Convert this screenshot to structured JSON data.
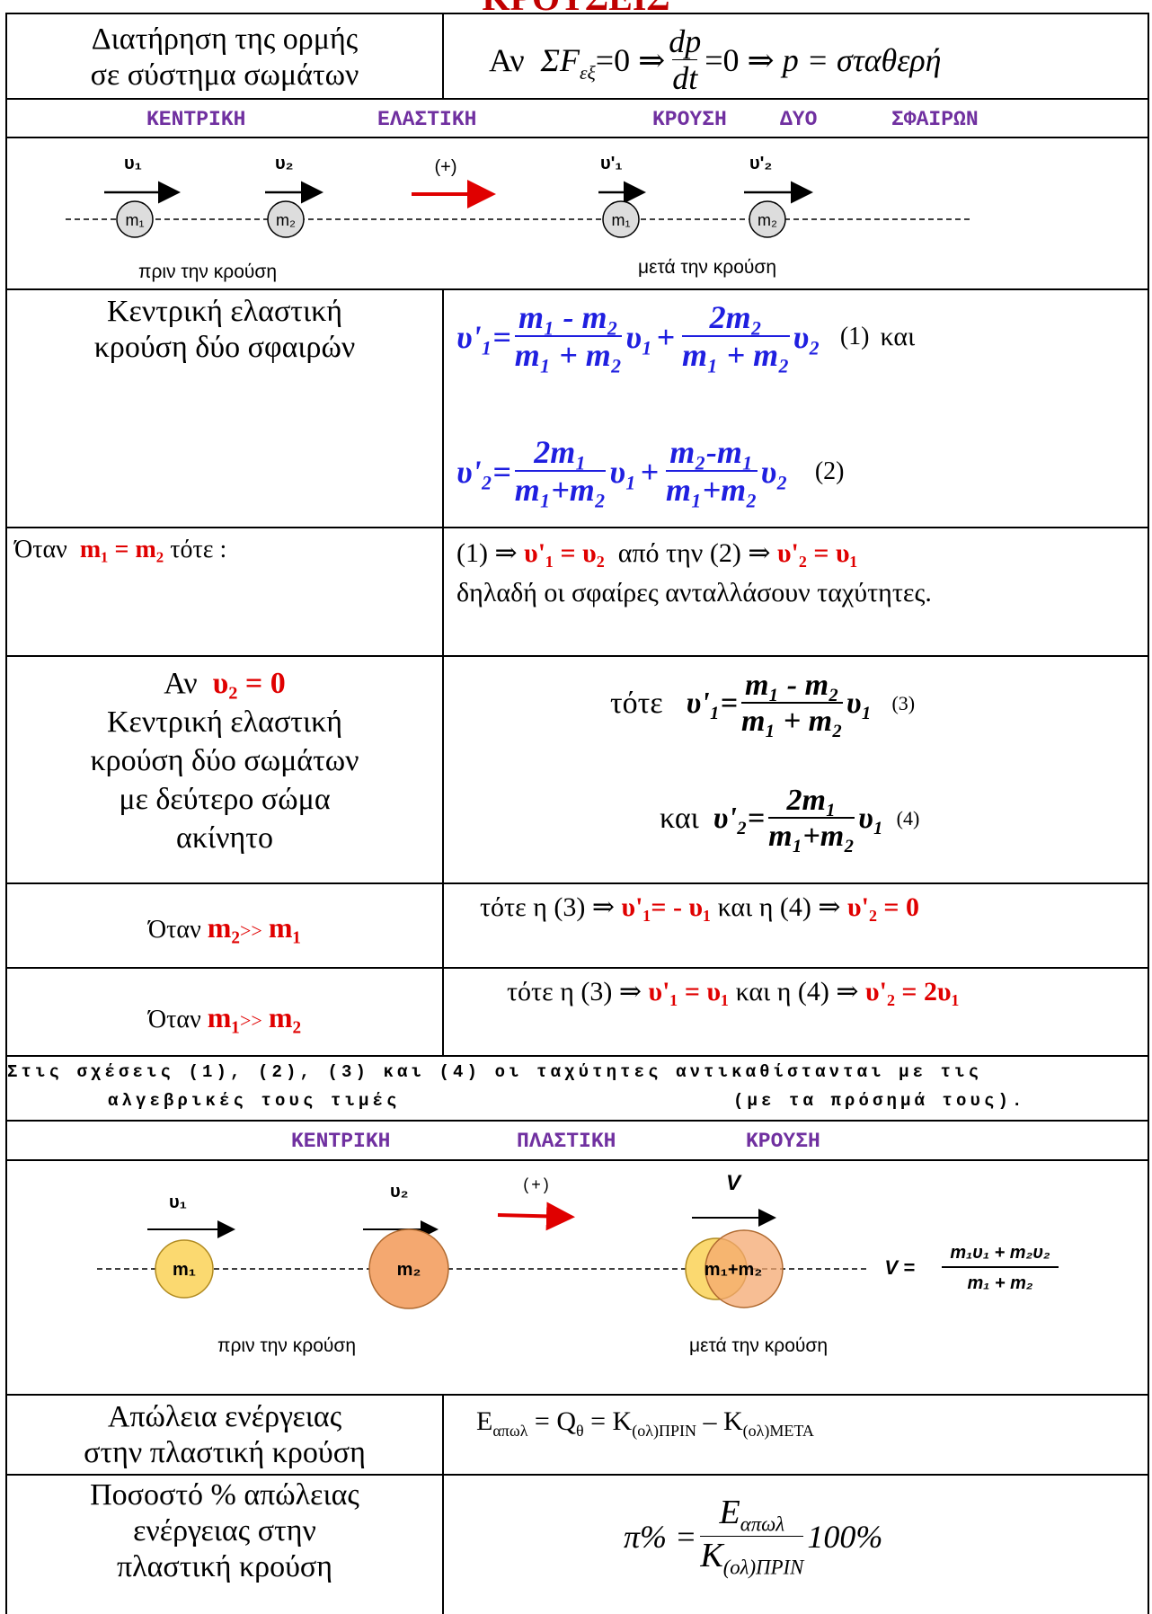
{
  "header": {
    "title": "ΚΡΟΥΣΕΙΣ"
  },
  "momentum": {
    "label": [
      "Διατήρηση της ορμής",
      "σε σύστημα σωμάτων"
    ],
    "formula": {
      "condition": "Αν",
      "force": "ΣF",
      "force_sub": "εξ",
      "eq1": "=0 ⇒",
      "deriv_num": "dp",
      "deriv_den": "dt",
      "eq2": "=0 ⇒",
      "result": "p = σταθερή"
    }
  },
  "elastic_header": [
    "ΚΕΝΤΡΙΚΗ",
    "ΕΛΑΣΤΙΚΗ",
    "ΚΡΟΥΣΗ",
    "ΔΥΟ",
    "ΣΦΑΙΡΩΝ"
  ],
  "elastic_diagram": {
    "before_v1": "υ₁",
    "before_v2": "υ₂",
    "direction": "(+)",
    "after_v1": "υ'₁",
    "after_v2": "υ'₂",
    "mass1": "m₁",
    "mass2": "m₂",
    "before": "πριν την κρούση",
    "after": "μετά την κρούση"
  },
  "elastic": {
    "label": [
      "Κεντρική ελαστική",
      "κρούση δύο σφαιρών"
    ],
    "eq1": {
      "lhs": "υ'₁",
      "eq": "=",
      "num1": "m₁ - m₂",
      "den1": "m₁ + m₂",
      "v1": "υ₁",
      "plus": "+",
      "num2": "2m₂",
      "den2": "m₁ + m₂",
      "v2": "υ₂",
      "tag": "(1)",
      "and": "και"
    },
    "eq2": {
      "lhs": "υ'₂",
      "eq": "=",
      "num1": "2m₁",
      "den1": "m₁+m₂",
      "v1": "υ₁",
      "plus": "+",
      "num2": "m₂-m₁",
      "den2": "m₁+m₂",
      "v2": "υ₂",
      "tag": "(2)"
    }
  },
  "equal_masses": {
    "when": "Όταν",
    "cond": "m₁ = m₂",
    "then": "τότε :",
    "p1": "(1) ⇒",
    "r1": "υ'₁ = υ₂",
    "p2": "από την (2) ⇒",
    "r2": "υ'₂ = υ₁",
    "note": "δηλαδή οι σφαίρες ανταλλάσουν ταχύτητες."
  },
  "target_at_rest": {
    "if": "Αν",
    "cond": "υ₂ = 0",
    "lines": [
      "Κεντρική ελαστική",
      "κρούση δύο σωμάτων",
      "με δεύτερο σώμα",
      "ακίνητο"
    ],
    "eq3": {
      "then": "τότε",
      "lhs": "υ'₁",
      "eq": "=",
      "num": "m₁ - m₂",
      "den": "m₁ + m₂",
      "v": "υ₁",
      "tag": "(3)"
    },
    "eq4": {
      "and": "και",
      "lhs": "υ'₂",
      "eq": "=",
      "num": "2m₁",
      "den": "m₁+m₂",
      "v": "υ₁",
      "tag": "(4)"
    }
  },
  "heavy_target": {
    "when": "Όταν",
    "cond": "m₂",
    "rel": ">>",
    "cond2": "m₁",
    "p1": "τότε η (3) ⇒",
    "r1": "υ'₁= - υ₁",
    "p2": "και η (4) ⇒",
    "r2": "υ'₂ = 0"
  },
  "heavy_projectile": {
    "when": "Όταν",
    "cond": "m₁",
    "rel": ">>",
    "cond2": "m₂",
    "p1": "τότε η (3) ⇒",
    "r1": "υ'₁ = υ₁",
    "p2": "και η (4) ⇒",
    "r2": "υ'₂ = 2υ₁"
  },
  "note": [
    "Στις σχέσεις (1), (2), (3) και (4) οι ταχύτητες αντικαθίστανται με τις",
    "αλγεβρικές τους τιμές",
    "(με τα πρόσημά τους)."
  ],
  "plastic_header": [
    "ΚΕΝΤΡΙΚΗ",
    "ΠΛΑΣΤΙΚΗ",
    "ΚΡΟΥΣΗ"
  ],
  "plastic_diagram": {
    "v1": "υ₁",
    "v2": "υ₂",
    "direction": "(+)",
    "v": "V",
    "mass1": "m₁",
    "mass2": "m₂",
    "combined": "m₁+m₂",
    "formula_lhs": "V =",
    "formula_num": "m₁υ₁ + m₂υ₂",
    "formula_den": "m₁ + m₂",
    "before": "πριν την κρούση",
    "after": "μετά την κρούση"
  },
  "energy_loss": {
    "label": [
      "Απώλεια ενέργειας",
      "στην πλαστική κρούση"
    ],
    "formula": {
      "E": "E",
      "E_sub": "απωλ",
      "eqQ": " = Q",
      "Q_sub": "θ",
      "eqK": " = K",
      "K1_sub": "(ολ)ΠΡΙΝ",
      "minus": " – K",
      "K2_sub": "(ολ)ΜΕΤΑ"
    }
  },
  "loss_percent": {
    "label": [
      "Ποσοστό % απώλειας",
      "ενέργειας στην",
      "πλαστική κρούση"
    ],
    "formula": {
      "lhs": "π% =",
      "num": "E",
      "num_sub": "απωλ",
      "den": "K",
      "den_sub": "(ολ)ΠΡΙΝ",
      "factor": "100%"
    }
  }
}
